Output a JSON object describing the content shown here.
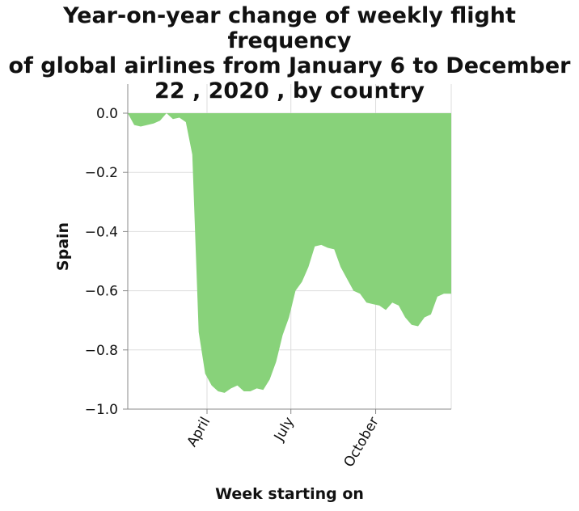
{
  "chart_data": {
    "type": "area",
    "title": "Year-on-year change of weekly flight frequency of global airlines from January 6 to December 22 , 2020 , by country",
    "title_lines": [
      "Year-on-year change of weekly flight frequency",
      "of global airlines from January 6 to December",
      "22 , 2020 , by country"
    ],
    "xlabel": "Week starting on",
    "ylabel": "Spain",
    "ylim": [
      -1.0,
      0.0
    ],
    "xlim": [
      "2020-01-06",
      "2020-12-22"
    ],
    "y_ticks": [
      0.0,
      -0.2,
      -0.4,
      -0.6,
      -0.8,
      -1.0
    ],
    "y_tick_labels": [
      "0.0",
      "−0.2",
      "−0.4",
      "−0.6",
      "−0.8",
      "−1.0"
    ],
    "x_ticks": [
      {
        "date": "2020-04-01",
        "label": "April"
      },
      {
        "date": "2020-07-01",
        "label": "July"
      },
      {
        "date": "2020-10-01",
        "label": "October"
      }
    ],
    "grid": true,
    "fill_color": "#88d27a",
    "series": [
      {
        "x": [
          "2020-01-06",
          "2020-01-13",
          "2020-01-20",
          "2020-01-27",
          "2020-02-03",
          "2020-02-10",
          "2020-02-17",
          "2020-02-24",
          "2020-03-02",
          "2020-03-09",
          "2020-03-16",
          "2020-03-23",
          "2020-03-30",
          "2020-04-06",
          "2020-04-13",
          "2020-04-20",
          "2020-04-27",
          "2020-05-04",
          "2020-05-11",
          "2020-05-18",
          "2020-05-25",
          "2020-06-01",
          "2020-06-08",
          "2020-06-15",
          "2020-06-22",
          "2020-06-29",
          "2020-07-06",
          "2020-07-13",
          "2020-07-20",
          "2020-07-27",
          "2020-08-03",
          "2020-08-10",
          "2020-08-17",
          "2020-08-24",
          "2020-08-31",
          "2020-09-07",
          "2020-09-14",
          "2020-09-21",
          "2020-09-28",
          "2020-10-05",
          "2020-10-12",
          "2020-10-19",
          "2020-10-26",
          "2020-11-02",
          "2020-11-09",
          "2020-11-16",
          "2020-11-23",
          "2020-11-30",
          "2020-12-07",
          "2020-12-14",
          "2020-12-22"
        ],
        "values": [
          0.0,
          -0.04,
          -0.045,
          -0.04,
          -0.035,
          -0.025,
          0.0,
          -0.02,
          -0.015,
          -0.03,
          -0.14,
          -0.74,
          -0.88,
          -0.92,
          -0.94,
          -0.945,
          -0.93,
          -0.92,
          -0.94,
          -0.94,
          -0.93,
          -0.935,
          -0.9,
          -0.84,
          -0.75,
          -0.69,
          -0.6,
          -0.57,
          -0.52,
          -0.45,
          -0.445,
          -0.455,
          -0.46,
          -0.52,
          -0.56,
          -0.6,
          -0.61,
          -0.64,
          -0.645,
          -0.65,
          -0.665,
          -0.64,
          -0.65,
          -0.69,
          -0.715,
          -0.72,
          -0.69,
          -0.68,
          -0.62,
          -0.61,
          -0.61
        ]
      }
    ]
  }
}
